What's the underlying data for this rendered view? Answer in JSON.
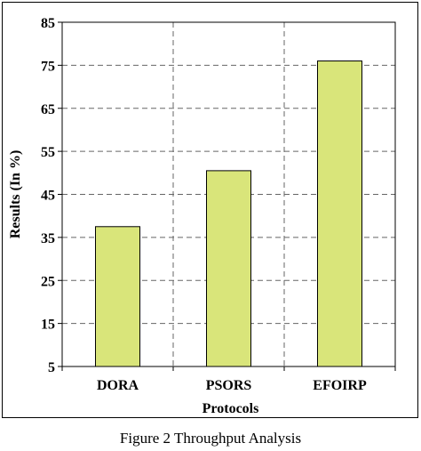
{
  "caption": "Figure 2 Throughput Analysis",
  "chart_data": {
    "type": "bar",
    "categories": [
      "DORA",
      "PSORS",
      "EFOIRP"
    ],
    "values": [
      37.5,
      50.5,
      76
    ],
    "xlabel": "Protocols",
    "ylabel": "Results (In %)",
    "ylim": [
      5,
      85
    ],
    "yticks": [
      5,
      15,
      25,
      35,
      45,
      55,
      65,
      75,
      85
    ],
    "grid": true,
    "bar_color": "#d9e57a",
    "bar_edge_color": "#000000"
  }
}
